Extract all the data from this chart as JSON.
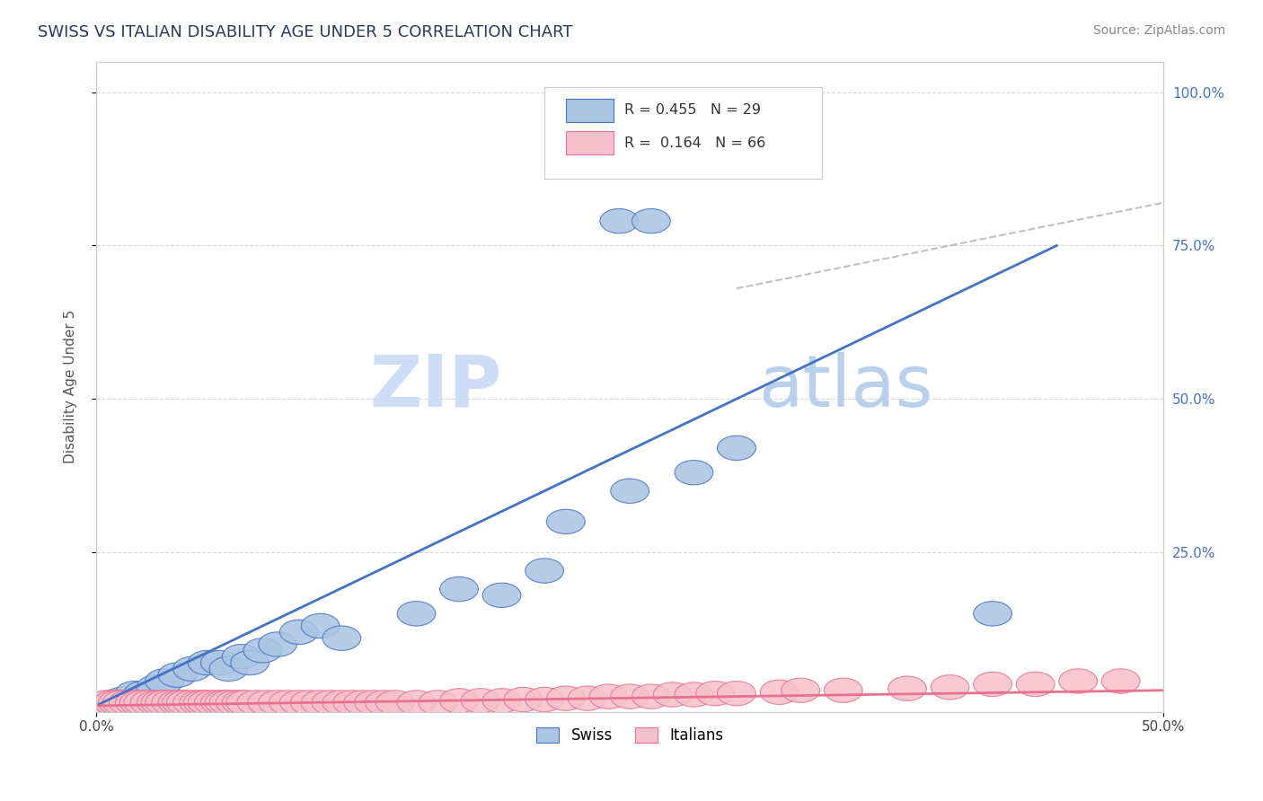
{
  "title": "SWISS VS ITALIAN DISABILITY AGE UNDER 5 CORRELATION CHART",
  "source": "Source: ZipAtlas.com",
  "ylabel": "Disability Age Under 5",
  "xlim": [
    0.0,
    0.5
  ],
  "ylim": [
    -0.01,
    1.05
  ],
  "xtick_labels": [
    "0.0%",
    "50.0%"
  ],
  "xtick_positions": [
    0.0,
    0.5
  ],
  "ytick_labels": [
    "25.0%",
    "50.0%",
    "75.0%",
    "100.0%"
  ],
  "ytick_positions": [
    0.25,
    0.5,
    0.75,
    1.0
  ],
  "swiss_color": "#aac4e2",
  "swiss_line_color": "#4472c4",
  "italian_color": "#f5c0cc",
  "italian_line_color": "#e87090",
  "dashed_line_color": "#c0c0c0",
  "watermark_zip_color": "#ccddf0",
  "watermark_atlas_color": "#b0cce8",
  "legend_swiss_R": "0.455",
  "legend_swiss_N": "29",
  "legend_italian_R": "0.164",
  "legend_italian_N": "66",
  "swiss_x": [
    0.008,
    0.012,
    0.018,
    0.022,
    0.028,
    0.032,
    0.038,
    0.045,
    0.052,
    0.058,
    0.062,
    0.068,
    0.072,
    0.078,
    0.085,
    0.095,
    0.105,
    0.115,
    0.15,
    0.17,
    0.22,
    0.25,
    0.28,
    0.3,
    0.245,
    0.26,
    0.42,
    0.19,
    0.21
  ],
  "swiss_y": [
    0.005,
    0.01,
    0.02,
    0.02,
    0.03,
    0.04,
    0.05,
    0.06,
    0.07,
    0.07,
    0.06,
    0.08,
    0.07,
    0.09,
    0.1,
    0.12,
    0.13,
    0.11,
    0.15,
    0.19,
    0.3,
    0.35,
    0.38,
    0.42,
    0.79,
    0.79,
    0.15,
    0.18,
    0.22
  ],
  "italian_x": [
    0.005,
    0.008,
    0.01,
    0.012,
    0.015,
    0.018,
    0.02,
    0.022,
    0.025,
    0.028,
    0.03,
    0.032,
    0.035,
    0.038,
    0.04,
    0.042,
    0.045,
    0.048,
    0.05,
    0.052,
    0.055,
    0.058,
    0.06,
    0.062,
    0.065,
    0.068,
    0.07,
    0.075,
    0.08,
    0.085,
    0.09,
    0.095,
    0.1,
    0.105,
    0.11,
    0.115,
    0.12,
    0.125,
    0.13,
    0.135,
    0.14,
    0.15,
    0.16,
    0.17,
    0.18,
    0.19,
    0.2,
    0.21,
    0.22,
    0.23,
    0.24,
    0.25,
    0.26,
    0.27,
    0.28,
    0.29,
    0.3,
    0.32,
    0.33,
    0.35,
    0.38,
    0.4,
    0.42,
    0.44,
    0.46,
    0.48
  ],
  "italian_y": [
    0.005,
    0.005,
    0.005,
    0.005,
    0.005,
    0.005,
    0.005,
    0.005,
    0.005,
    0.005,
    0.005,
    0.005,
    0.005,
    0.005,
    0.005,
    0.005,
    0.005,
    0.005,
    0.005,
    0.005,
    0.005,
    0.005,
    0.005,
    0.005,
    0.005,
    0.005,
    0.005,
    0.005,
    0.005,
    0.005,
    0.005,
    0.005,
    0.005,
    0.005,
    0.005,
    0.005,
    0.005,
    0.005,
    0.005,
    0.005,
    0.005,
    0.005,
    0.005,
    0.008,
    0.008,
    0.008,
    0.01,
    0.01,
    0.012,
    0.012,
    0.015,
    0.015,
    0.015,
    0.018,
    0.018,
    0.02,
    0.02,
    0.022,
    0.025,
    0.025,
    0.028,
    0.03,
    0.035,
    0.035,
    0.04,
    0.04
  ],
  "background_color": "#ffffff",
  "grid_color": "#d8d8d8"
}
